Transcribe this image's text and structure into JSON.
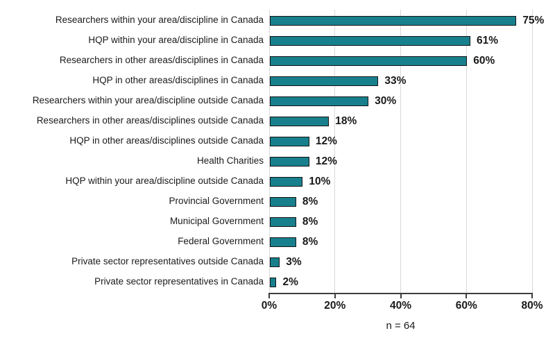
{
  "chart_data": {
    "type": "bar",
    "orientation": "horizontal",
    "title": "",
    "xlabel": "",
    "ylabel": "",
    "categories": [
      "Researchers within your area/discipline in Canada",
      "HQP within your area/discipline in Canada",
      "Researchers in other areas/disciplines in Canada",
      "HQP in other areas/disciplines in Canada",
      "Researchers within your area/discipline outside Canada",
      "Researchers in other areas/disciplines outside Canada",
      "HQP in other areas/disciplines outside Canada",
      "Health Charities",
      "HQP within your area/discipline outside Canada",
      "Provincial Government",
      "Municipal Government",
      "Federal Government",
      "Private sector representatives outside Canada",
      "Private sector representatives in Canada"
    ],
    "values": [
      75,
      61,
      60,
      33,
      30,
      18,
      12,
      12,
      10,
      8,
      8,
      8,
      3,
      2
    ],
    "value_labels": [
      "75%",
      "61%",
      "60%",
      "33%",
      "30%",
      "18%",
      "12%",
      "12%",
      "10%",
      "8%",
      "8%",
      "8%",
      "3%",
      "2%"
    ],
    "xlim": [
      0,
      80
    ],
    "x_tick_values": [
      0,
      20,
      40,
      60,
      80
    ],
    "x_tick_labels": [
      "0%",
      "20%",
      "40%",
      "60%",
      "80%"
    ],
    "grid": "vertical",
    "legend": "none",
    "footnote": "n = 64",
    "colors": {
      "bar_fill": "#17808C",
      "bar_border": "#141414",
      "gridline": "#d9d9d9",
      "axis": "#3d3d3d",
      "text": "#1a1a1a"
    }
  }
}
